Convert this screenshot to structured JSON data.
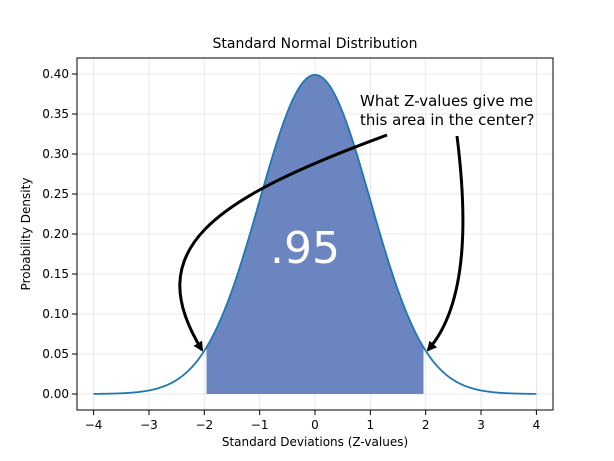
{
  "chart_data": {
    "type": "area",
    "title": "Standard Normal Distribution",
    "xlabel": "Standard Deviations (Z-values)",
    "ylabel": "Probability Density",
    "xlim": [
      -4.3,
      4.3
    ],
    "ylim": [
      -0.02,
      0.42
    ],
    "xticks": [
      -4,
      -3,
      -2,
      -1,
      0,
      1,
      2,
      3,
      4
    ],
    "xtick_labels": [
      "−4",
      "−3",
      "−2",
      "−1",
      "0",
      "1",
      "2",
      "3",
      "4"
    ],
    "yticks": [
      0.0,
      0.05,
      0.1,
      0.15,
      0.2,
      0.25,
      0.3,
      0.35,
      0.4
    ],
    "ytick_labels": [
      "0.00",
      "0.05",
      "0.10",
      "0.15",
      "0.20",
      "0.25",
      "0.30",
      "0.35",
      "0.40"
    ],
    "grid": true,
    "series": [
      {
        "x": [
          -4,
          -3.5,
          -3,
          -2.5,
          -2,
          -1.96,
          -1.5,
          -1,
          -0.5,
          0,
          0.5,
          1,
          1.5,
          1.96,
          2,
          2.5,
          3,
          3.5,
          4
        ],
        "y": [
          0.0001,
          0.0009,
          0.0044,
          0.0175,
          0.054,
          0.0584,
          0.1295,
          0.242,
          0.3521,
          0.3989,
          0.3521,
          0.242,
          0.1295,
          0.0584,
          0.054,
          0.0175,
          0.0044,
          0.0009,
          0.0001
        ],
        "color": "#1f77b4"
      }
    ],
    "shaded_region": {
      "from": -1.96,
      "to": 1.96,
      "color": "#6a85c0"
    },
    "annotations": {
      "area_label": ".95",
      "question_line1": "What Z-values give me",
      "question_line2": "this area in the center?"
    }
  }
}
